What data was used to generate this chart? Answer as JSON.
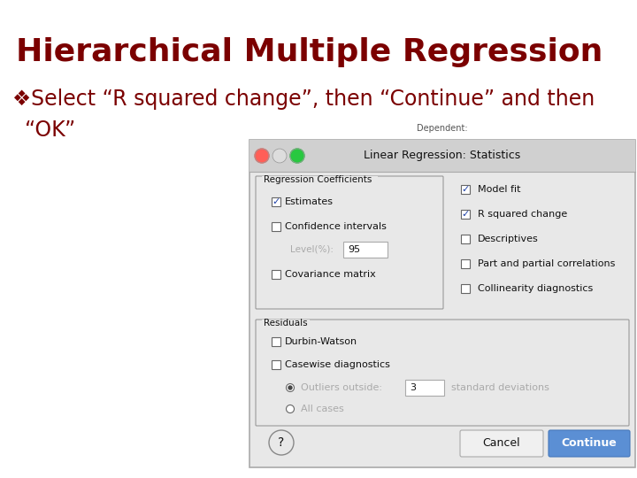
{
  "title": "Hierarchical Multiple Regression",
  "title_color": "#7B0000",
  "title_fontsize": 26,
  "bullet_color": "#7B0000",
  "bullet_text_line1": "❖Select “R squared change”, then “Continue” and then",
  "bullet_text_line2": "“OK”",
  "bullet_fontsize": 17,
  "background_color": "#FFFFFF",
  "dialog_title": "Linear Regression: Statistics"
}
